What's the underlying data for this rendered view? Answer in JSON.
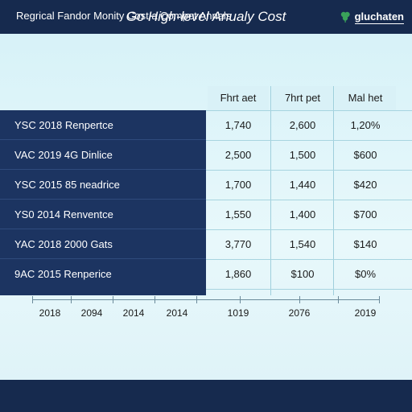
{
  "chart_data": {
    "type": "table",
    "title": "Go High-level Anualy Cost",
    "columns": [
      "Fhrt aet",
      "7hrt pet",
      "Mal het"
    ],
    "rows": [
      {
        "label": "YSC 2018 Renpertce",
        "values": [
          "1,740",
          "2,600",
          "1,20%"
        ]
      },
      {
        "label": "VAC 2019 4G Dinlice",
        "values": [
          "2,500",
          "1,500",
          "$600"
        ]
      },
      {
        "label": "YSC 2015 85 neadrice",
        "values": [
          "1,700",
          "1,440",
          "$420"
        ]
      },
      {
        "label": "YS0 2014 Renventce",
        "values": [
          "1,550",
          "1,400",
          "$700"
        ]
      },
      {
        "label": "YAC 2018 2000 Gats",
        "values": [
          "3,770",
          "1,540",
          "$140"
        ]
      },
      {
        "label": "9AC 2015 Renperice",
        "values": [
          "1,860",
          "$100",
          "$0%"
        ]
      }
    ],
    "x_ticks": [
      "2018",
      "2094",
      "2014",
      "2014",
      "1019",
      "2076",
      "2019"
    ],
    "footer": "Regrical Fandor Monity Cost a Compet Annals"
  },
  "brand": {
    "logo_text": "gluchaten"
  },
  "colors": {
    "navy": "#1c3461",
    "header": "#162a4e",
    "bg": "#dff4f8",
    "logo_green": "#3aa35a"
  }
}
